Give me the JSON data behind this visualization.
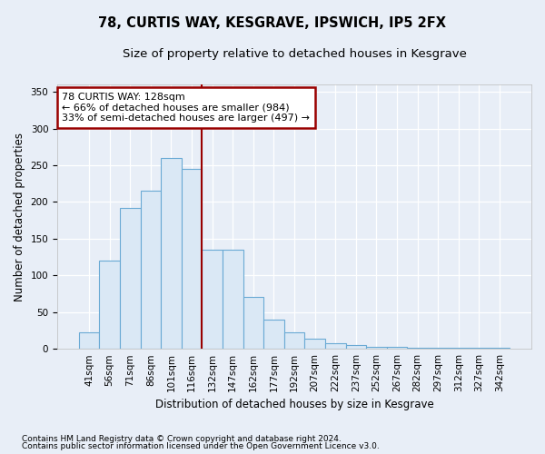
{
  "title": "78, CURTIS WAY, KESGRAVE, IPSWICH, IP5 2FX",
  "subtitle": "Size of property relative to detached houses in Kesgrave",
  "xlabel": "Distribution of detached houses by size in Kesgrave",
  "ylabel": "Number of detached properties",
  "footnote1": "Contains HM Land Registry data © Crown copyright and database right 2024.",
  "footnote2": "Contains public sector information licensed under the Open Government Licence v3.0.",
  "annotation_line1": "78 CURTIS WAY: 128sqm",
  "annotation_line2": "← 66% of detached houses are smaller (984)",
  "annotation_line3": "33% of semi-detached houses are larger (497) →",
  "bar_labels": [
    "41sqm",
    "56sqm",
    "71sqm",
    "86sqm",
    "101sqm",
    "116sqm",
    "132sqm",
    "147sqm",
    "162sqm",
    "177sqm",
    "192sqm",
    "207sqm",
    "222sqm",
    "237sqm",
    "252sqm",
    "267sqm",
    "282sqm",
    "297sqm",
    "312sqm",
    "327sqm",
    "342sqm"
  ],
  "bar_heights": [
    23,
    120,
    192,
    215,
    260,
    245,
    135,
    135,
    71,
    40,
    23,
    14,
    8,
    5,
    3,
    3,
    2,
    2,
    1,
    1,
    2
  ],
  "bar_color": "#dae8f5",
  "bar_edge_color": "#6aaad4",
  "vline_color": "#990000",
  "annotation_box_color": "#990000",
  "ylim": [
    0,
    360
  ],
  "yticks": [
    0,
    50,
    100,
    150,
    200,
    250,
    300,
    350
  ],
  "background_color": "#e8eef7",
  "plot_bg_color": "#e8eef7",
  "grid_color": "#ffffff",
  "title_fontsize": 10.5,
  "subtitle_fontsize": 9.5,
  "axis_label_fontsize": 8.5,
  "tick_fontsize": 7.5,
  "annotation_fontsize": 8,
  "footnote_fontsize": 6.5
}
